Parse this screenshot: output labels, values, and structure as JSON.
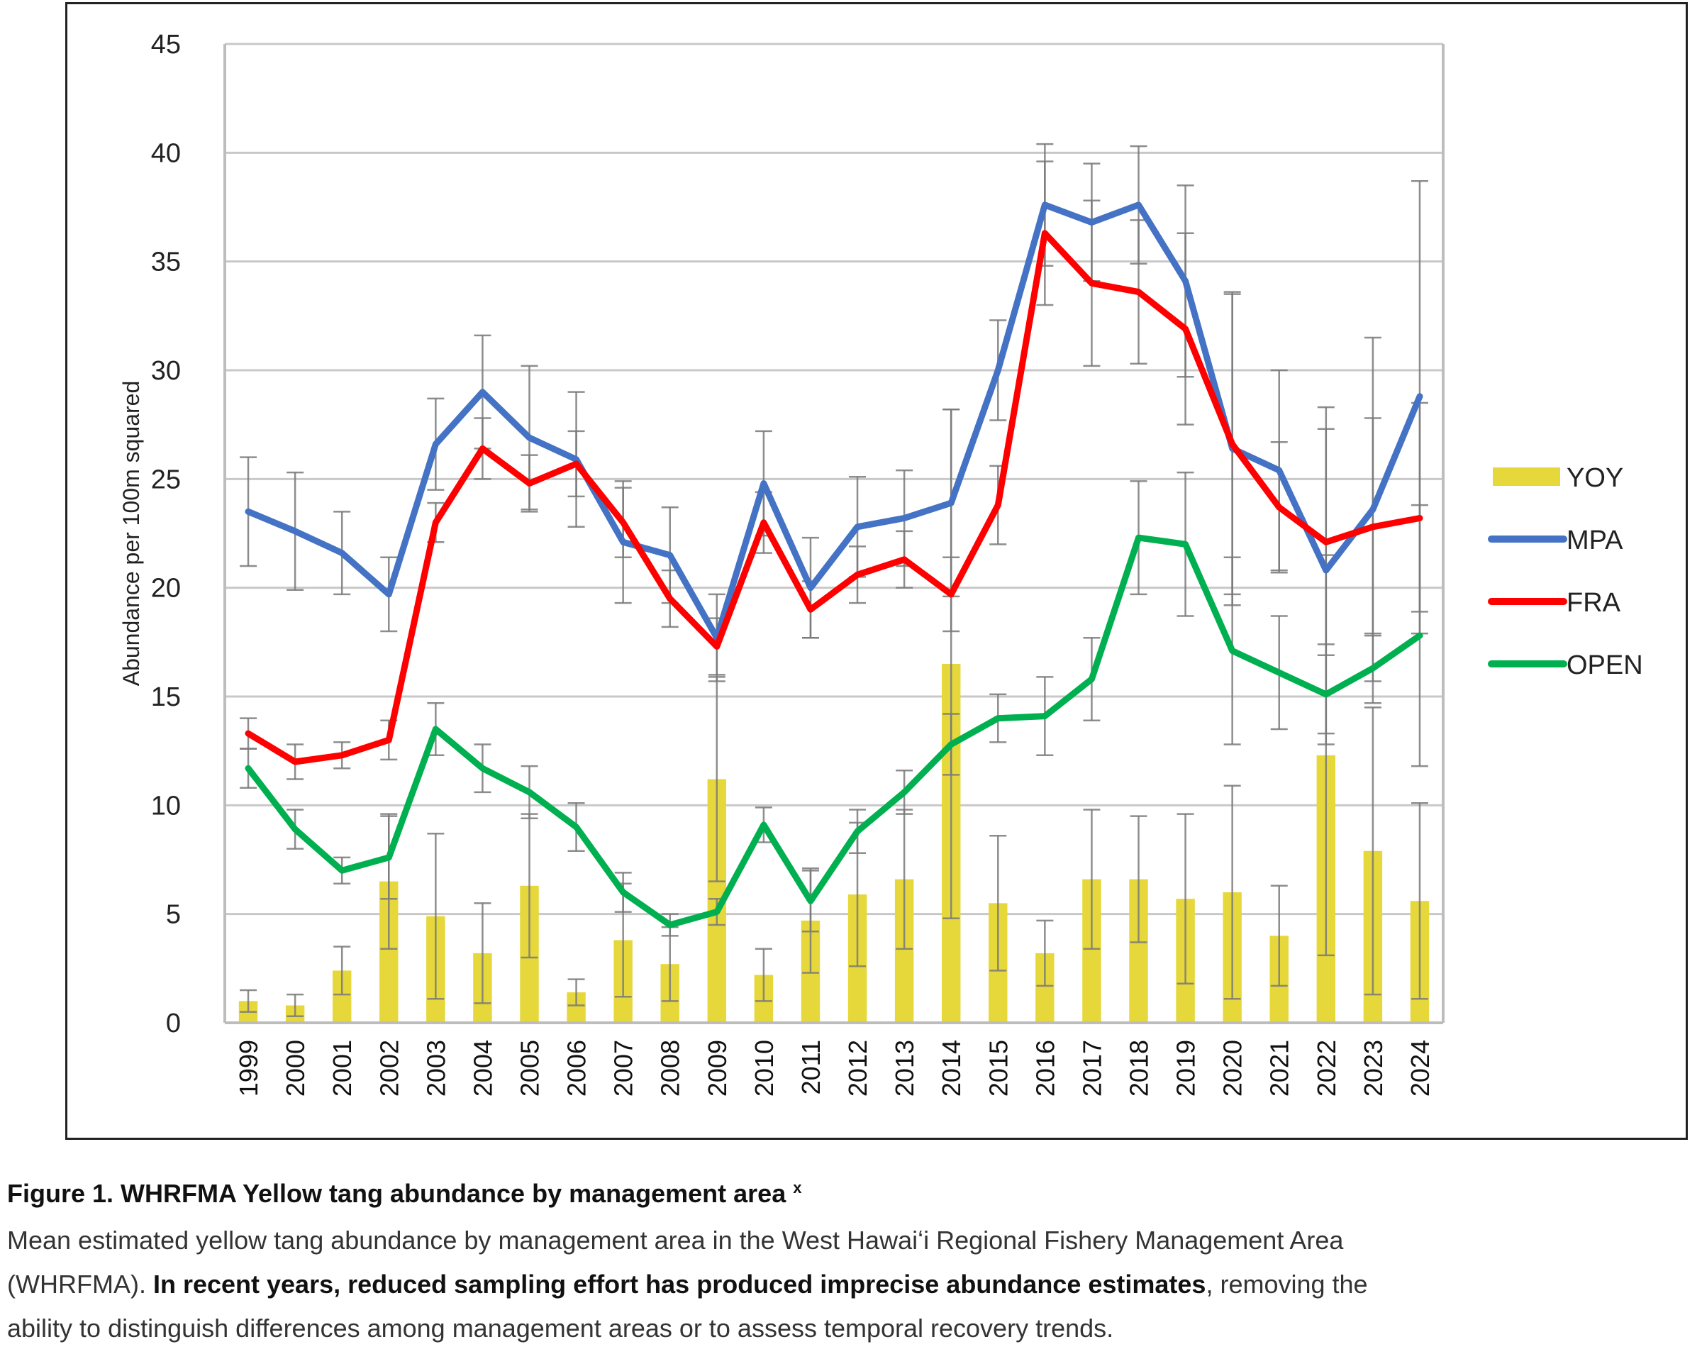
{
  "chart_data": {
    "type": "bar+line",
    "title": "",
    "xlabel": "",
    "ylabel": "Abundance per 100m squared",
    "ylim": [
      0,
      45
    ],
    "yticks": [
      0,
      5,
      10,
      15,
      20,
      25,
      30,
      35,
      40,
      45
    ],
    "grid": true,
    "legend_position": "right",
    "categories": [
      "1999",
      "2000",
      "2001",
      "2002",
      "2003",
      "2004",
      "2005",
      "2006",
      "2007",
      "2008",
      "2009",
      "2010",
      "2011",
      "2012",
      "2013",
      "2014",
      "2015",
      "2016",
      "2017",
      "2018",
      "2019",
      "2020",
      "2021",
      "2022",
      "2023",
      "2024"
    ],
    "series": [
      {
        "name": "YOY",
        "kind": "bar",
        "color": "#e6d83a",
        "values": [
          1.0,
          0.8,
          2.4,
          6.5,
          4.9,
          3.2,
          6.3,
          1.4,
          3.8,
          2.7,
          11.2,
          2.2,
          4.7,
          5.9,
          6.6,
          16.5,
          5.5,
          3.2,
          6.6,
          6.6,
          5.7,
          6.0,
          4.0,
          12.3,
          7.9,
          5.6
        ],
        "error": [
          0.5,
          0.5,
          1.1,
          3.1,
          3.8,
          2.3,
          3.3,
          0.6,
          2.6,
          1.7,
          4.7,
          1.2,
          2.4,
          3.3,
          3.2,
          11.7,
          3.1,
          1.5,
          3.2,
          2.9,
          3.9,
          4.9,
          2.3,
          9.2,
          6.6,
          4.5
        ]
      },
      {
        "name": "MPA",
        "kind": "line",
        "color": "#4472c4",
        "values": [
          23.5,
          22.6,
          21.6,
          19.7,
          26.6,
          29.0,
          26.9,
          25.9,
          22.1,
          21.5,
          17.7,
          24.8,
          20.0,
          22.8,
          23.2,
          23.9,
          30.0,
          37.6,
          36.8,
          37.6,
          34.1,
          26.4,
          25.4,
          20.8,
          23.6,
          28.8
        ],
        "error": [
          2.5,
          2.7,
          1.9,
          1.7,
          2.1,
          2.6,
          3.3,
          3.1,
          2.8,
          2.2,
          2.0,
          2.4,
          2.3,
          2.3,
          2.2,
          4.3,
          2.3,
          2.8,
          2.7,
          2.7,
          4.4,
          7.2,
          4.6,
          7.5,
          7.9,
          9.9
        ]
      },
      {
        "name": "FRA",
        "kind": "line",
        "color": "#ff0000",
        "values": [
          13.3,
          12.0,
          12.3,
          13.0,
          23.0,
          26.4,
          24.8,
          25.7,
          23.0,
          19.5,
          17.3,
          23.0,
          19.0,
          20.6,
          21.3,
          19.7,
          23.8,
          36.3,
          34.0,
          33.6,
          31.9,
          26.6,
          23.7,
          22.1,
          22.8,
          23.2
        ],
        "error": [
          0.7,
          0.8,
          0.6,
          0.9,
          0.9,
          1.4,
          1.3,
          1.5,
          1.6,
          1.3,
          1.3,
          1.4,
          1.3,
          1.3,
          1.3,
          1.7,
          1.8,
          3.3,
          3.8,
          3.3,
          4.4,
          6.9,
          3.0,
          5.2,
          5.0,
          5.3
        ]
      },
      {
        "name": "OPEN",
        "kind": "line",
        "color": "#00b050",
        "values": [
          11.7,
          8.9,
          7.0,
          7.6,
          13.5,
          11.7,
          10.6,
          9.0,
          6.0,
          4.5,
          5.1,
          9.1,
          5.6,
          8.8,
          10.6,
          12.8,
          14.0,
          14.1,
          15.8,
          22.3,
          22.0,
          17.1,
          16.1,
          15.1,
          16.3,
          17.8
        ],
        "error": [
          0.9,
          0.9,
          0.6,
          1.9,
          1.2,
          1.1,
          1.2,
          1.1,
          0.9,
          0.5,
          0.6,
          0.8,
          1.4,
          1.0,
          1.0,
          1.4,
          1.1,
          1.8,
          1.9,
          2.6,
          3.3,
          4.3,
          2.6,
          2.3,
          1.6,
          6.0
        ]
      }
    ]
  },
  "caption": {
    "title": "Figure 1. WHRFMA Yellow tang abundance by management area",
    "title_mark": "x",
    "line1": "Mean estimated yellow tang abundance by management area in the West Hawaiʻi Regional Fishery Management Area",
    "line2_plain_start": "(WHRFMA). ",
    "line2_bold": "In recent years, reduced sampling effort has produced imprecise abundance estimates",
    "line2_plain_end": ", removing the",
    "line3": "ability to distinguish differences among management areas or to assess temporal recovery trends."
  }
}
